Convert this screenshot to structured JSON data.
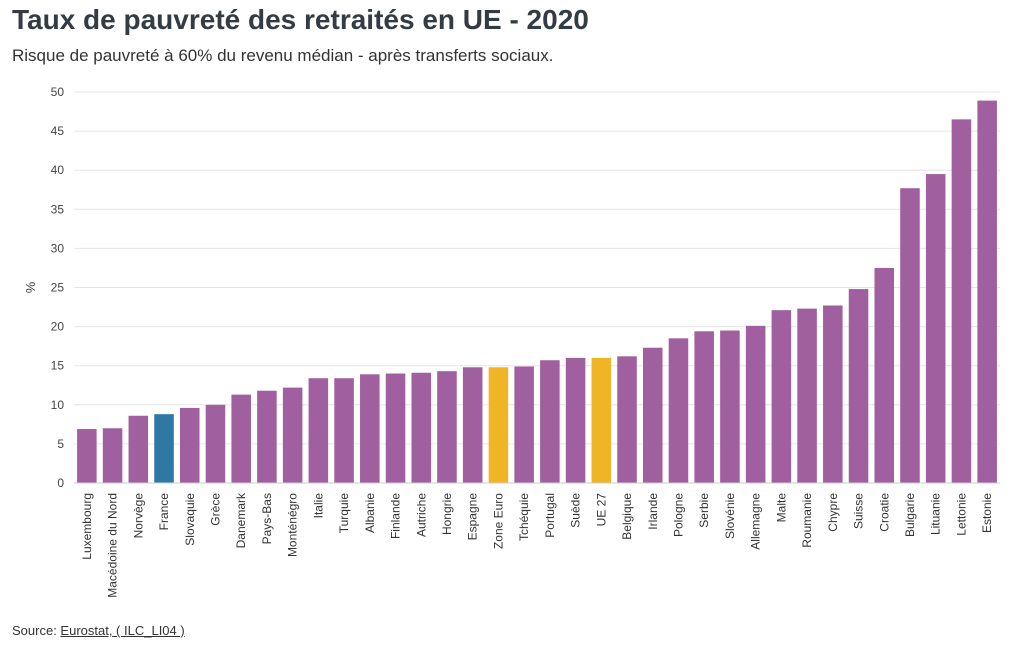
{
  "title": "Taux de pauvreté des retraités en UE - 2020",
  "subtitle": "Risque de pauvreté à 60% du revenu médian - après transferts sociaux.",
  "source": {
    "prefix": "Source: ",
    "link_text": "Eurostat, ( ILC_LI04 )"
  },
  "chart_data": {
    "type": "bar",
    "title": "Taux de pauvreté des retraités en UE - 2020",
    "subtitle": "Risque de pauvreté à 60% du revenu médian - après transferts sociaux.",
    "xlabel": "",
    "ylabel": "%",
    "ylim": [
      0,
      50
    ],
    "yticks": [
      0,
      5,
      10,
      15,
      20,
      25,
      30,
      35,
      40,
      45,
      50
    ],
    "grid": true,
    "categories": [
      "Luxembourg",
      "Macédoine du Nord",
      "Norvège",
      "France",
      "Slovaquie",
      "Grèce",
      "Danemark",
      "Pays-Bas",
      "Monténégro",
      "Italie",
      "Turquie",
      "Albanie",
      "Finlande",
      "Autriche",
      "Hongrie",
      "Espagne",
      "Zone Euro",
      "Tchéquie",
      "Portugal",
      "Suède",
      "UE 27",
      "Belgique",
      "Irlande",
      "Pologne",
      "Serbie",
      "Slovénie",
      "Allemagne",
      "Malte",
      "Roumanie",
      "Chypre",
      "Suisse",
      "Croatie",
      "Bulgarie",
      "Lituanie",
      "Lettonie",
      "Estonie"
    ],
    "values": [
      6.9,
      7.0,
      8.6,
      8.8,
      9.6,
      10.0,
      11.3,
      11.8,
      12.2,
      13.4,
      13.4,
      13.9,
      14.0,
      14.1,
      14.3,
      14.8,
      14.8,
      14.9,
      15.7,
      16.0,
      16.0,
      16.2,
      17.3,
      18.5,
      19.4,
      19.5,
      20.1,
      22.1,
      22.3,
      22.7,
      24.8,
      27.5,
      37.7,
      39.5,
      46.5,
      48.9
    ],
    "colors": {
      "default": "#a0609f",
      "highlight_france": "#2f78a3",
      "highlight_aggregate": "#f0b527"
    },
    "highlight": {
      "France": "highlight_france",
      "Zone Euro": "highlight_aggregate",
      "UE 27": "highlight_aggregate"
    }
  }
}
